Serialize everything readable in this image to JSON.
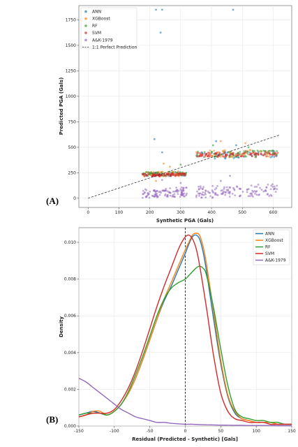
{
  "colors": {
    "ANN": "#1f77b4",
    "XGBoost": "#ff7f0e",
    "RF": "#2ca02c",
    "SVM": "#d62728",
    "A&K-1979": "#9467bd"
  },
  "chart_data": [
    {
      "panel_label": "(A)",
      "type": "scatter",
      "xlabel": "Synthetic PGA (Gals)",
      "ylabel": "Predicted PGA (Gals)",
      "xlim": [
        -30,
        660
      ],
      "ylim": [
        -90,
        1890
      ],
      "xticks": [
        0,
        100,
        200,
        300,
        400,
        500,
        600
      ],
      "yticks": [
        0,
        250,
        500,
        750,
        1000,
        1250,
        1500,
        1750
      ],
      "grid": true,
      "legend_position": "top-left",
      "legend": [
        "ANN",
        "XGBoost",
        "RF",
        "SVM",
        "A&K-1979",
        "1:1 Perfect Prediction"
      ],
      "reference_line": {
        "name": "1:1 Perfect Prediction",
        "x": [
          0,
          620
        ],
        "y": [
          0,
          620
        ]
      },
      "series": [
        {
          "name": "ANN",
          "clusters": [
            {
              "x": [
                175,
                320
              ],
              "y": [
                205,
                260
              ],
              "n": 45
            },
            {
              "x": [
                350,
                615
              ],
              "y": [
                385,
                470
              ],
              "n": 55
            }
          ],
          "points": [
            [
              215,
              580
            ],
            [
              240,
              450
            ],
            [
              470,
              1850
            ],
            [
              220,
              1850
            ],
            [
              240,
              1850
            ],
            [
              235,
              1625
            ],
            [
              480,
              520
            ],
            [
              415,
              560
            ]
          ]
        },
        {
          "name": "XGBoost",
          "clusters": [
            {
              "x": [
                175,
                320
              ],
              "y": [
                210,
                270
              ],
              "n": 50
            },
            {
              "x": [
                350,
                615
              ],
              "y": [
                395,
                480
              ],
              "n": 60
            }
          ],
          "points": [
            [
              245,
              340
            ],
            [
              265,
              310
            ],
            [
              430,
              560
            ],
            [
              510,
              540
            ],
            [
              220,
              170
            ]
          ]
        },
        {
          "name": "RF",
          "clusters": [
            {
              "x": [
                175,
                320
              ],
              "y": [
                215,
                265
              ],
              "n": 45
            },
            {
              "x": [
                350,
                615
              ],
              "y": [
                400,
                470
              ],
              "n": 55
            }
          ],
          "points": [
            [
              300,
              330
            ],
            [
              405,
              520
            ],
            [
              520,
              500
            ]
          ]
        },
        {
          "name": "SVM",
          "clusters": [
            {
              "x": [
                175,
                320
              ],
              "y": [
                215,
                245
              ],
              "n": 80
            },
            {
              "x": [
                350,
                615
              ],
              "y": [
                405,
                455
              ],
              "n": 90
            }
          ],
          "points": []
        },
        {
          "name": "A&K-1979",
          "clusters": [
            {
              "x": [
                175,
                320
              ],
              "y": [
                0,
                110
              ],
              "n": 110
            },
            {
              "x": [
                350,
                615
              ],
              "y": [
                0,
                140
              ],
              "n": 130
            }
          ],
          "points": [
            [
              240,
              180
            ],
            [
              430,
              170
            ],
            [
              460,
              220
            ],
            [
              300,
              150
            ]
          ]
        }
      ]
    },
    {
      "panel_label": "(B)",
      "type": "line",
      "xlabel": "Residual (Predicted - Synthetic) [Gals]",
      "ylabel": "Density",
      "xlim": [
        -150,
        150
      ],
      "ylim": [
        0,
        0.0108
      ],
      "xticks": [
        -150,
        -100,
        -50,
        0,
        50,
        100,
        150
      ],
      "yticks": [
        0.0,
        0.002,
        0.004,
        0.006,
        0.008,
        0.01
      ],
      "ytick_labels": [
        "0.000",
        "0.002",
        "0.004",
        "0.006",
        "0.008",
        "0.010"
      ],
      "grid": true,
      "legend_position": "top-right",
      "vertical_line_x": 0,
      "series": [
        {
          "name": "ANN",
          "x": [
            -150,
            -140,
            -130,
            -120,
            -110,
            -100,
            -90,
            -80,
            -70,
            -60,
            -50,
            -40,
            -30,
            -20,
            -10,
            0,
            5,
            10,
            15,
            20,
            25,
            30,
            40,
            50,
            60,
            70,
            80,
            90,
            100,
            110,
            120,
            130,
            140,
            150
          ],
          "y": [
            0.0006,
            0.0007,
            0.0008,
            0.0007,
            0.0006,
            0.0008,
            0.0012,
            0.0018,
            0.0026,
            0.0036,
            0.0047,
            0.0058,
            0.0068,
            0.0076,
            0.0085,
            0.0094,
            0.0099,
            0.0103,
            0.0104,
            0.0102,
            0.0095,
            0.0084,
            0.0058,
            0.0034,
            0.0016,
            0.0007,
            0.0004,
            0.0003,
            0.0002,
            0.0002,
            0.0002,
            0.0001,
            0.0001,
            0.0001
          ]
        },
        {
          "name": "XGBoost",
          "x": [
            -150,
            -140,
            -130,
            -120,
            -110,
            -100,
            -90,
            -80,
            -70,
            -60,
            -50,
            -40,
            -30,
            -20,
            -10,
            0,
            5,
            10,
            15,
            20,
            25,
            30,
            40,
            50,
            60,
            70,
            80,
            90,
            100,
            110,
            120,
            130,
            140,
            150
          ],
          "y": [
            0.0005,
            0.0006,
            0.0008,
            0.0008,
            0.0006,
            0.0008,
            0.0012,
            0.0018,
            0.0026,
            0.0036,
            0.0047,
            0.0058,
            0.0069,
            0.0078,
            0.0087,
            0.0096,
            0.01,
            0.0104,
            0.0105,
            0.0104,
            0.0098,
            0.0088,
            0.0062,
            0.0036,
            0.0017,
            0.0008,
            0.0004,
            0.0003,
            0.0002,
            0.0002,
            0.0002,
            0.0001,
            0.0001,
            0.0001
          ]
        },
        {
          "name": "RF",
          "x": [
            -150,
            -140,
            -130,
            -120,
            -110,
            -100,
            -90,
            -80,
            -70,
            -60,
            -50,
            -40,
            -30,
            -20,
            -10,
            0,
            5,
            10,
            15,
            20,
            25,
            30,
            40,
            50,
            60,
            70,
            80,
            90,
            100,
            110,
            120,
            130,
            140,
            150
          ],
          "y": [
            0.0006,
            0.0007,
            0.0007,
            0.0007,
            0.0006,
            0.0008,
            0.0012,
            0.0019,
            0.0028,
            0.0038,
            0.0049,
            0.006,
            0.0069,
            0.0075,
            0.0078,
            0.008,
            0.0082,
            0.0084,
            0.0086,
            0.0087,
            0.0086,
            0.0082,
            0.0064,
            0.0042,
            0.0022,
            0.0009,
            0.0005,
            0.0004,
            0.0003,
            0.0003,
            0.0002,
            0.0002,
            0.0001,
            0.0001
          ]
        },
        {
          "name": "SVM",
          "x": [
            -150,
            -140,
            -130,
            -120,
            -110,
            -100,
            -90,
            -80,
            -70,
            -60,
            -50,
            -40,
            -30,
            -20,
            -10,
            -5,
            0,
            5,
            10,
            15,
            20,
            30,
            40,
            50,
            60,
            70,
            80,
            90,
            100,
            110,
            120,
            130,
            140,
            150
          ],
          "y": [
            0.0005,
            0.0006,
            0.0007,
            0.0007,
            0.0007,
            0.0009,
            0.0014,
            0.0021,
            0.003,
            0.0041,
            0.0053,
            0.0065,
            0.0076,
            0.0086,
            0.0096,
            0.01,
            0.0103,
            0.0104,
            0.0102,
            0.0097,
            0.0088,
            0.0064,
            0.0038,
            0.0018,
            0.0008,
            0.0004,
            0.0003,
            0.0002,
            0.0002,
            0.0002,
            0.0001,
            0.0001,
            0.0001,
            0.0001
          ]
        },
        {
          "name": "A&K-1979",
          "x": [
            -150,
            -140,
            -130,
            -120,
            -110,
            -100,
            -90,
            -80,
            -70,
            -60,
            -50,
            -40,
            -30,
            -20,
            -10,
            0,
            10,
            20,
            30,
            40,
            50,
            60,
            70,
            80,
            90,
            100,
            110,
            120,
            130,
            140,
            150
          ],
          "y": [
            0.0026,
            0.0024,
            0.0021,
            0.0018,
            0.0015,
            0.0012,
            0.0009,
            0.0007,
            0.0005,
            0.0004,
            0.0003,
            0.0002,
            0.0002,
            0.00015,
            0.00012,
            0.0001,
            0.0001,
            8e-05,
            7e-05,
            6e-05,
            5e-05,
            5e-05,
            4e-05,
            4e-05,
            3e-05,
            3e-05,
            3e-05,
            3e-05,
            2e-05,
            2e-05,
            2e-05
          ]
        }
      ]
    }
  ]
}
